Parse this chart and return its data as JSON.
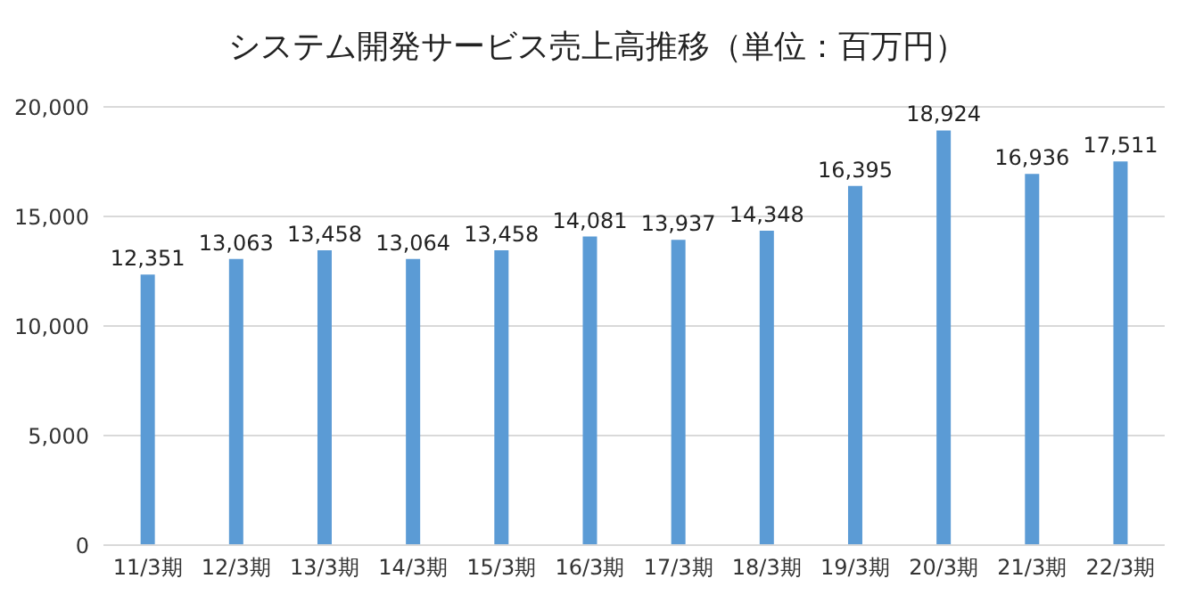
{
  "chart_data": {
    "type": "bar",
    "title": "システム開発サービス売上高推移（単位：百万円）",
    "categories": [
      "11/3期",
      "12/3期",
      "13/3期",
      "14/3期",
      "15/3期",
      "16/3期",
      "17/3期",
      "18/3期",
      "19/3期",
      "20/3期",
      "21/3期",
      "22/3期"
    ],
    "values": [
      12351,
      13063,
      13458,
      13064,
      13458,
      14081,
      13937,
      14348,
      16395,
      18924,
      16936,
      17511
    ],
    "value_labels": [
      "12,351",
      "13,063",
      "13,458",
      "13,064",
      "13,458",
      "14,081",
      "13,937",
      "14,348",
      "16,395",
      "18,924",
      "16,936",
      "17,511"
    ],
    "color": "#5b9bd5",
    "ylim": [
      0,
      20000
    ],
    "yticks": [
      0,
      {
        "value": 5000,
        "label": "5,000"
      },
      {
        "value": 10000,
        "label": "10,000"
      },
      {
        "value": 15000,
        "label": "15,000"
      },
      {
        "value": 20000,
        "label": "20,000"
      }
    ],
    "grid": "y",
    "legend": false
  }
}
